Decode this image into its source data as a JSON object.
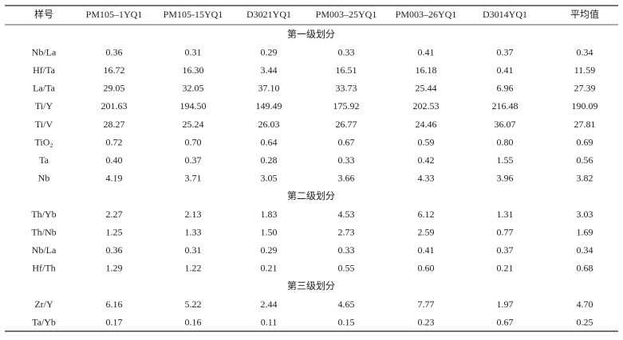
{
  "table": {
    "header": [
      "样号",
      "PM105–1YQ1",
      "PM105-15YQ1",
      "D3021YQ1",
      "PM003–25YQ1",
      "PM003–26YQ1",
      "D3014YQ1",
      "平均值"
    ],
    "sections": [
      {
        "title": "第一级划分",
        "rows": [
          [
            "Nb/La",
            "0.36",
            "0.31",
            "0.29",
            "0.33",
            "0.41",
            "0.37",
            "0.34"
          ],
          [
            "Hf/Ta",
            "16.72",
            "16.30",
            "3.44",
            "16.51",
            "16.18",
            "0.41",
            "11.59"
          ],
          [
            "La/Ta",
            "29.05",
            "32.05",
            "37.10",
            "33.73",
            "25.44",
            "6.96",
            "27.39"
          ],
          [
            "Ti/Y",
            "201.63",
            "194.50",
            "149.49",
            "175.92",
            "202.53",
            "216.48",
            "190.09"
          ],
          [
            "Ti/V",
            "28.27",
            "25.24",
            "26.03",
            "26.77",
            "24.46",
            "36.07",
            "27.81"
          ],
          [
            "TiO₂",
            "0.72",
            "0.70",
            "0.64",
            "0.67",
            "0.59",
            "0.80",
            "0.69"
          ],
          [
            "Ta",
            "0.40",
            "0.37",
            "0.28",
            "0.33",
            "0.42",
            "1.55",
            "0.56"
          ],
          [
            "Nb",
            "4.19",
            "3.71",
            "3.05",
            "3.66",
            "4.33",
            "3.96",
            "3.82"
          ]
        ]
      },
      {
        "title": "第二级划分",
        "rows": [
          [
            "Th/Yb",
            "2.27",
            "2.13",
            "1.83",
            "4.53",
            "6.12",
            "1.31",
            "3.03"
          ],
          [
            "Th/Nb",
            "1.25",
            "1.33",
            "1.50",
            "2.73",
            "2.59",
            "0.77",
            "1.69"
          ],
          [
            "Nb/La",
            "0.36",
            "0.31",
            "0.29",
            "0.33",
            "0.41",
            "0.37",
            "0.34"
          ],
          [
            "Hf/Th",
            "1.29",
            "1.22",
            "0.21",
            "0.55",
            "0.60",
            "0.21",
            "0.68"
          ]
        ]
      },
      {
        "title": "第三级划分",
        "rows": [
          [
            "Zr/Y",
            "6.16",
            "5.22",
            "2.44",
            "4.65",
            "7.77",
            "1.97",
            "4.70"
          ],
          [
            "Ta/Yb",
            "0.17",
            "0.16",
            "0.11",
            "0.15",
            "0.23",
            "0.67",
            "0.25"
          ]
        ]
      }
    ]
  }
}
